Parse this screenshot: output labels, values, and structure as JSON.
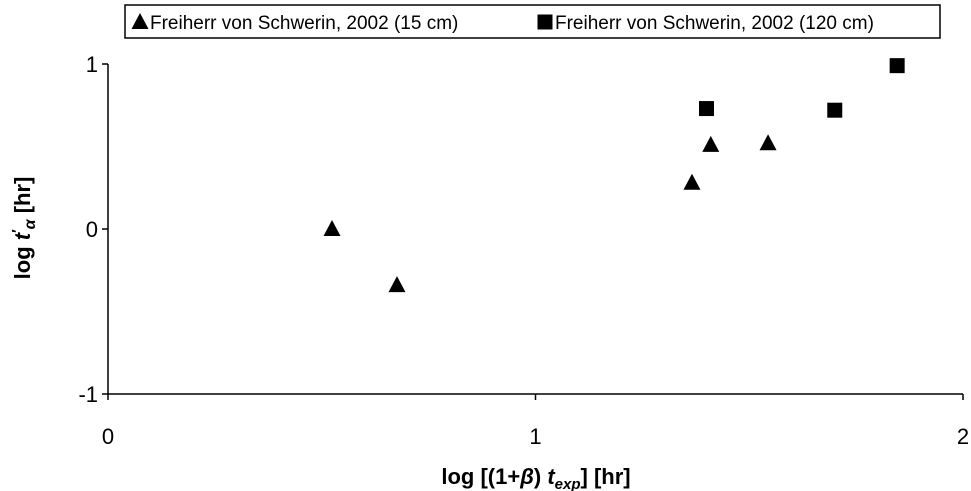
{
  "chart_data": {
    "type": "scatter",
    "xlabel_parts": [
      "log [(1+",
      "β",
      ") ",
      "t",
      "exp",
      "]  [hr]"
    ],
    "ylabel_parts": [
      "log ",
      "t",
      "′",
      "α",
      " [hr]"
    ],
    "xlim": [
      0,
      2
    ],
    "xticks": [
      0,
      1,
      2
    ],
    "ylim": [
      -1,
      1
    ],
    "yticks": [
      -1,
      0,
      1
    ],
    "grid": false,
    "legend": "top",
    "series": [
      {
        "name": "Freiherr von Schwerin, 2002 (15 cm)",
        "color": "#000000",
        "marker": "triangle",
        "x": [
          0.524,
          0.676,
          1.366,
          1.41,
          1.544
        ],
        "values": [
          0,
          -0.34,
          0.28,
          0.51,
          0.52
        ]
      },
      {
        "name": "Freiherr von Schwerin, 2002 (120 cm)",
        "color": "#000000",
        "marker": "square",
        "x": [
          1.4,
          1.7,
          1.846
        ],
        "values": [
          0.73,
          0.72,
          0.99
        ]
      }
    ]
  }
}
